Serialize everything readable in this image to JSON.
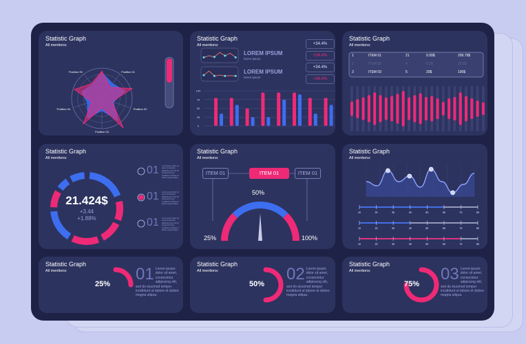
{
  "colors": {
    "pink": "#ee2a77",
    "blue": "#3d6ef0",
    "card": "#2d335f",
    "panel": "#1e2247"
  },
  "card_title": "Statistic Graph",
  "card_subtitle": "All mentions:",
  "radar": {
    "axes": [
      "Position 01",
      "Position 02",
      "Position 03",
      "Position 04",
      "Position 05"
    ],
    "series": [
      {
        "color": "#3d6ef0",
        "values": [
          0.85,
          0.6,
          0.8,
          0.4,
          0.9,
          0.4,
          0.8,
          0.5,
          0.7,
          0.55
        ]
      },
      {
        "color": "#ee2a77",
        "values": [
          0.9,
          0.45,
          1.05,
          0.35,
          1.2,
          0.3,
          1.05,
          0.35,
          0.95,
          0.6
        ]
      }
    ],
    "toggle_level": 0.5
  },
  "kpi": {
    "items": [
      {
        "title": "LOREM IPSUM",
        "subtitle": "lorem ipsum",
        "spark": [
          0.3,
          0.5,
          0.35,
          0.9,
          0.5,
          0.8,
          0.3
        ]
      },
      {
        "title": "LOREM IPSUM",
        "subtitle": "lorem ipsum",
        "spark": [
          0.4,
          0.9,
          0.3,
          0.4,
          0.3,
          0.35,
          0.3
        ]
      }
    ],
    "badges": [
      {
        "text": "+34.4%",
        "tone": "white"
      },
      {
        "text": "+34.4%",
        "tone": "pink"
      },
      {
        "text": "+34.4%",
        "tone": "white"
      },
      {
        "text": "+34.4%",
        "tone": "pink"
      }
    ]
  },
  "chart_data": {
    "type": "bar",
    "yticks": [
      "100",
      "75",
      "50",
      "25",
      "0"
    ],
    "ylim": [
      0,
      100
    ],
    "series": [
      {
        "color": "#ee2a77",
        "values": [
          80,
          80,
          50,
          95,
          95,
          95,
          80,
          80
        ]
      },
      {
        "color": "#3d6ef0",
        "values": [
          35,
          60,
          25,
          25,
          75,
          90,
          35,
          60
        ]
      }
    ]
  },
  "table": {
    "rows": [
      [
        "1",
        "ITEM 01",
        "21",
        "9.99$",
        "209.79$"
      ],
      [
        "2",
        "ITEM 02",
        "4",
        "5.2$",
        "20.8$"
      ],
      [
        "3",
        "ITEM 03",
        "5",
        "20$",
        "100$"
      ]
    ]
  },
  "wave_bars": [
    0.32,
    0.42,
    0.5,
    0.6,
    0.72,
    0.6,
    0.5,
    0.56,
    0.66,
    0.78,
    0.5,
    0.6,
    0.68,
    0.52,
    0.56,
    0.46,
    0.3,
    0.46,
    0.52,
    0.72,
    0.56,
    0.46,
    0.36,
    0.28
  ],
  "donut": {
    "value": "21.424$",
    "delta": "+3.44",
    "percent": "+1.88%",
    "segments": [
      {
        "from": 5,
        "to": 68,
        "color": "#3d6ef0"
      },
      {
        "from": 78,
        "to": 110,
        "color": "#ee2a77"
      },
      {
        "from": 117,
        "to": 152,
        "color": "#ee2a77"
      },
      {
        "from": 160,
        "to": 205,
        "color": "#ee2a77"
      },
      {
        "from": 212,
        "to": 265,
        "color": "#3d6ef0"
      },
      {
        "from": 272,
        "to": 300,
        "color": "#ee2a77"
      },
      {
        "from": 307,
        "to": 325,
        "color": "#3d6ef0"
      },
      {
        "from": 332,
        "to": 356,
        "color": "#3d6ef0"
      }
    ],
    "options": [
      {
        "num": "01",
        "text": "Lorem ipsum dolor sit amet consectetur adipiscing elit, sed do eiusmod tempor incididunt ut labore et dolore magna aliqua.",
        "selected": false
      },
      {
        "num": "01",
        "text": "Lorem ipsum dolor sit amet consectetur adipiscing elit, sed do eiusmod tempor incididunt ut labore et dolore magna aliqua.",
        "selected": true
      },
      {
        "num": "01",
        "text": "Lorem ipsum dolor sit amet consectetur adipiscing elit, sed do eiusmod tempor incididunt ut labore et dolore magna aliqua.",
        "selected": false
      }
    ]
  },
  "gauge": {
    "items": [
      "ITEM 01",
      "ITEM 01",
      "ITEM 01"
    ],
    "mid_label": "50%",
    "left_label": "25%",
    "right_label": "100%",
    "value": 50
  },
  "line": {
    "values": [
      0.45,
      0.3,
      0.85,
      0.45,
      0.65,
      0.25,
      0.9,
      0.45,
      0.05,
      0.35,
      0.75
    ],
    "markers": [
      2,
      4,
      6,
      8
    ]
  },
  "sliders": {
    "ticks": [
      "10",
      "20",
      "30",
      "40",
      "50",
      "60",
      "70",
      "80"
    ],
    "items": [
      {
        "value": 60,
        "color": "#3d6ef0"
      },
      {
        "value": 40,
        "color": "#3d6ef0"
      },
      {
        "value": 70,
        "color": "#ee2a77"
      }
    ]
  },
  "progress": [
    {
      "percent": "25%",
      "value": 25,
      "num": "01",
      "text": "Lorem ipsum dolor sit amet, consectetur adipiscing elit, sed do eiusmod tempor incididunt ut labore et dolore magna aliqua."
    },
    {
      "percent": "50%",
      "value": 50,
      "num": "02",
      "text": "Lorem ipsum dolor sit amet, consectetur adipiscing elit, sed do eiusmod tempor incididunt ut labore et dolore magna aliqua."
    },
    {
      "percent": "75%",
      "value": 75,
      "num": "03",
      "text": "Lorem ipsum dolor sit amet, consectetur adipiscing elit, sed do eiusmod tempor incididunt ut labore et dolore magna aliqua."
    }
  ]
}
